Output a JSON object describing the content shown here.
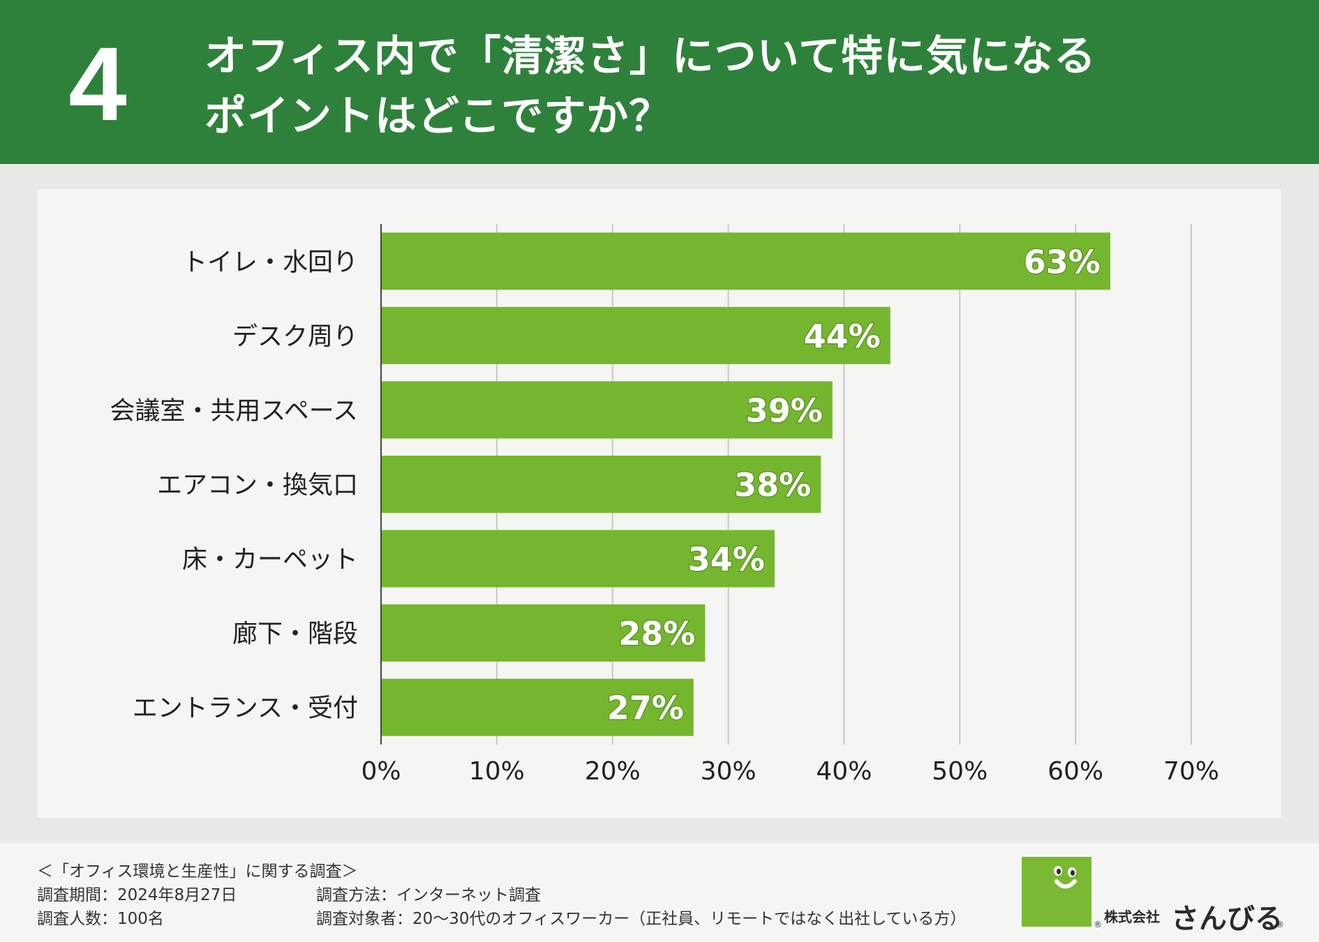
{
  "header": {
    "number": "4",
    "title_line1": "オフィス内で「清潔さ」について特に気になる",
    "title_line2": "ポイントはどこですか？",
    "bg_color": "#2e813b"
  },
  "chart_data": {
    "type": "bar",
    "orientation": "horizontal",
    "categories": [
      "トイレ・水回り",
      "デスク周り",
      "会議室・共用スペース",
      "エアコン・換気口",
      "床・カーペット",
      "廊下・階段",
      "エントランス・受付"
    ],
    "values": [
      63,
      44,
      39,
      38,
      34,
      28,
      27
    ],
    "value_labels": [
      "63%",
      "44%",
      "39%",
      "38%",
      "34%",
      "28%",
      "27%"
    ],
    "xlim": [
      0,
      70
    ],
    "x_ticks": [
      "0%",
      "10%",
      "20%",
      "30%",
      "40%",
      "50%",
      "60%",
      "70%"
    ],
    "grid": true,
    "bar_color": "#74b72e"
  },
  "footer": {
    "survey_title": "＜「オフィス環境と生産性」に関する調査＞",
    "period": "調査期間：2024年8月27日",
    "method": "調査方法：インターネット調査",
    "count": "調査人数：100名",
    "target": "調査対象者：20〜30代のオフィスワーカー（正社員、リモートではなく出社している方）"
  },
  "logo": {
    "company": "株式会社",
    "brand": "さんびる",
    "reg_mark": "®",
    "color": "#7ab931"
  }
}
